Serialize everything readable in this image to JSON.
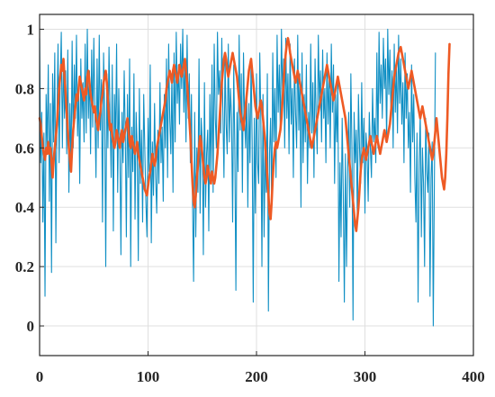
{
  "chart_data": {
    "type": "line",
    "title": "",
    "xlabel": "",
    "ylabel": "",
    "xlim": [
      0,
      400
    ],
    "ylim": [
      -0.1,
      1.05
    ],
    "grid": true,
    "legend": "none",
    "x_ticks": [
      0,
      100,
      200,
      300,
      400
    ],
    "x_tick_labels": [
      "0",
      "100",
      "200",
      "300",
      "400"
    ],
    "y_ticks": [
      0,
      0.2,
      0.4,
      0.6,
      0.8,
      1
    ],
    "y_tick_labels": [
      "0",
      "0.2",
      "0.4",
      "0.6",
      "0.8",
      "1"
    ],
    "series": [
      {
        "color": "#0f8fc4",
        "x_step": 1,
        "values": [
          0.97,
          0.55,
          0.72,
          0.35,
          0.65,
          0.1,
          0.78,
          0.6,
          0.88,
          0.42,
          0.75,
          0.18,
          0.85,
          0.62,
          0.92,
          0.28,
          0.7,
          0.95,
          0.55,
          0.82,
          0.99,
          0.6,
          0.9,
          0.7,
          0.86,
          0.58,
          0.93,
          0.45,
          0.75,
          0.52,
          0.96,
          0.6,
          0.88,
          0.7,
          0.98,
          0.64,
          0.79,
          0.48,
          0.9,
          0.7,
          0.82,
          0.62,
          0.95,
          0.65,
          1.0,
          0.7,
          0.86,
          0.58,
          0.93,
          0.67,
          0.97,
          0.72,
          0.5,
          0.9,
          0.6,
          0.98,
          0.66,
          0.83,
          0.35,
          0.92,
          0.72,
          0.2,
          0.85,
          0.6,
          0.94,
          0.7,
          0.5,
          0.88,
          0.32,
          0.78,
          0.62,
          0.95,
          0.45,
          0.8,
          0.6,
          0.24,
          0.72,
          0.55,
          0.86,
          0.65,
          0.3,
          0.78,
          0.5,
          0.9,
          0.2,
          0.67,
          0.52,
          0.85,
          0.36,
          0.72,
          0.6,
          0.22,
          0.8,
          0.48,
          0.66,
          0.35,
          0.78,
          0.6,
          0.42,
          0.3,
          0.7,
          0.52,
          0.88,
          0.28,
          0.62,
          0.44,
          0.75,
          0.5,
          0.38,
          0.66,
          0.48,
          0.82,
          0.55,
          0.67,
          0.42,
          0.78,
          0.6,
          0.9,
          0.5,
          0.95,
          0.7,
          0.58,
          0.85,
          0.45,
          0.92,
          0.62,
          0.99,
          0.75,
          0.88,
          0.68,
          0.95,
          0.8,
          1.0,
          0.72,
          0.9,
          0.62,
          0.98,
          0.7,
          0.85,
          0.55,
          0.78,
          0.42,
          0.15,
          0.72,
          0.3,
          0.6,
          0.45,
          0.9,
          0.38,
          0.7,
          0.62,
          0.24,
          0.82,
          0.4,
          0.58,
          0.66,
          0.32,
          0.78,
          0.5,
          0.88,
          0.45,
          0.95,
          0.7,
          0.6,
          0.99,
          0.78,
          0.86,
          0.65,
          0.97,
          0.72,
          0.5,
          0.9,
          0.68,
          0.58,
          0.95,
          0.62,
          0.8,
          0.7,
          0.35,
          0.88,
          0.6,
          0.12,
          0.72,
          0.52,
          0.98,
          0.66,
          0.85,
          0.45,
          0.92,
          0.7,
          0.6,
          0.8,
          0.4,
          0.75,
          0.55,
          0.9,
          0.62,
          0.08,
          0.7,
          0.38,
          0.85,
          0.55,
          0.48,
          0.92,
          0.7,
          0.2,
          0.78,
          0.3,
          0.6,
          0.45,
          0.85,
          0.05,
          0.58,
          0.7,
          0.4,
          0.92,
          0.62,
          0.8,
          0.5,
          0.98,
          0.72,
          0.88,
          0.65,
          1.0,
          0.78,
          0.9,
          0.6,
          0.97,
          0.7,
          0.85,
          0.58,
          0.95,
          0.68,
          0.8,
          0.5,
          0.9,
          0.72,
          0.6,
          0.98,
          0.66,
          0.85,
          0.4,
          0.92,
          0.55,
          0.78,
          0.62,
          0.88,
          0.48,
          0.72,
          0.6,
          0.95,
          0.65,
          0.82,
          0.5,
          0.9,
          0.7,
          0.58,
          0.98,
          0.75,
          0.86,
          0.62,
          0.93,
          0.7,
          0.8,
          0.55,
          0.92,
          0.68,
          0.85,
          0.6,
          0.95,
          0.72,
          0.88,
          0.48,
          0.78,
          0.62,
          0.82,
          0.15,
          0.55,
          0.3,
          0.7,
          0.45,
          0.08,
          0.58,
          0.2,
          0.5,
          0.72,
          0.4,
          0.85,
          0.6,
          0.02,
          0.72,
          0.55,
          0.66,
          0.35,
          0.78,
          0.6,
          0.48,
          0.82,
          0.55,
          0.7,
          0.38,
          0.65,
          0.58,
          0.42,
          0.72,
          0.6,
          0.5,
          0.8,
          0.62,
          0.7,
          0.55,
          0.92,
          0.6,
          0.99,
          0.75,
          0.88,
          0.7,
          0.97,
          0.8,
          0.9,
          0.62,
          1.0,
          0.78,
          0.93,
          0.7,
          0.86,
          0.6,
          0.95,
          0.72,
          0.88,
          0.65,
          0.98,
          0.75,
          0.9,
          0.68,
          0.82,
          0.55,
          0.92,
          0.7,
          0.85,
          0.6,
          0.72,
          0.45,
          0.88,
          0.62,
          0.78,
          0.5,
          0.35,
          0.65,
          0.08,
          0.55,
          0.72,
          0.3,
          0.6,
          0.48,
          0.2,
          0.7,
          0.52,
          0.45,
          0.65,
          0.1,
          0.5,
          0.62,
          0.0,
          0.48,
          0.92
        ]
      },
      {
        "color": "#ee5a24",
        "x_step": 1,
        "values": [
          0.7,
          0.68,
          0.64,
          0.6,
          0.58,
          0.56,
          0.6,
          0.58,
          0.62,
          0.58,
          0.6,
          0.55,
          0.5,
          0.56,
          0.6,
          0.64,
          0.68,
          0.74,
          0.8,
          0.84,
          0.88,
          0.86,
          0.9,
          0.84,
          0.78,
          0.72,
          0.66,
          0.6,
          0.56,
          0.52,
          0.6,
          0.66,
          0.7,
          0.74,
          0.78,
          0.76,
          0.8,
          0.84,
          0.82,
          0.8,
          0.78,
          0.76,
          0.8,
          0.78,
          0.84,
          0.86,
          0.82,
          0.78,
          0.76,
          0.74,
          0.72,
          0.74,
          0.7,
          0.68,
          0.66,
          0.7,
          0.72,
          0.76,
          0.78,
          0.82,
          0.84,
          0.86,
          0.82,
          0.76,
          0.7,
          0.66,
          0.68,
          0.64,
          0.62,
          0.6,
          0.62,
          0.66,
          0.64,
          0.62,
          0.6,
          0.64,
          0.66,
          0.62,
          0.64,
          0.66,
          0.68,
          0.7,
          0.66,
          0.62,
          0.6,
          0.64,
          0.62,
          0.6,
          0.58,
          0.6,
          0.62,
          0.58,
          0.56,
          0.54,
          0.52,
          0.5,
          0.48,
          0.46,
          0.45,
          0.44,
          0.47,
          0.5,
          0.52,
          0.55,
          0.58,
          0.56,
          0.54,
          0.56,
          0.6,
          0.62,
          0.64,
          0.66,
          0.68,
          0.7,
          0.72,
          0.74,
          0.76,
          0.8,
          0.82,
          0.84,
          0.86,
          0.84,
          0.82,
          0.86,
          0.88,
          0.86,
          0.84,
          0.82,
          0.85,
          0.88,
          0.86,
          0.84,
          0.86,
          0.88,
          0.9,
          0.86,
          0.82,
          0.76,
          0.7,
          0.64,
          0.56,
          0.48,
          0.42,
          0.4,
          0.44,
          0.5,
          0.54,
          0.6,
          0.64,
          0.62,
          0.58,
          0.54,
          0.5,
          0.48,
          0.5,
          0.54,
          0.52,
          0.5,
          0.48,
          0.52,
          0.5,
          0.48,
          0.5,
          0.54,
          0.58,
          0.64,
          0.7,
          0.76,
          0.82,
          0.86,
          0.9,
          0.92,
          0.9,
          0.86,
          0.84,
          0.86,
          0.88,
          0.9,
          0.92,
          0.9,
          0.88,
          0.86,
          0.84,
          0.8,
          0.76,
          0.72,
          0.7,
          0.68,
          0.66,
          0.7,
          0.74,
          0.78,
          0.82,
          0.86,
          0.88,
          0.9,
          0.86,
          0.82,
          0.78,
          0.74,
          0.72,
          0.7,
          0.72,
          0.74,
          0.76,
          0.74,
          0.7,
          0.66,
          0.62,
          0.56,
          0.5,
          0.44,
          0.38,
          0.36,
          0.42,
          0.5,
          0.56,
          0.6,
          0.62,
          0.6,
          0.62,
          0.64,
          0.66,
          0.7,
          0.76,
          0.82,
          0.88,
          0.92,
          0.95,
          0.97,
          0.95,
          0.92,
          0.9,
          0.88,
          0.86,
          0.84,
          0.82,
          0.84,
          0.86,
          0.84,
          0.82,
          0.8,
          0.78,
          0.76,
          0.74,
          0.72,
          0.7,
          0.68,
          0.66,
          0.64,
          0.62,
          0.6,
          0.62,
          0.64,
          0.66,
          0.68,
          0.7,
          0.72,
          0.74,
          0.76,
          0.78,
          0.8,
          0.82,
          0.84,
          0.86,
          0.88,
          0.86,
          0.84,
          0.82,
          0.8,
          0.78,
          0.76,
          0.78,
          0.8,
          0.82,
          0.84,
          0.82,
          0.8,
          0.78,
          0.76,
          0.74,
          0.72,
          0.7,
          0.66,
          0.62,
          0.58,
          0.54,
          0.5,
          0.46,
          0.42,
          0.38,
          0.34,
          0.32,
          0.36,
          0.4,
          0.46,
          0.52,
          0.56,
          0.58,
          0.6,
          0.58,
          0.56,
          0.58,
          0.6,
          0.62,
          0.64,
          0.62,
          0.6,
          0.58,
          0.6,
          0.62,
          0.64,
          0.62,
          0.6,
          0.58,
          0.6,
          0.62,
          0.64,
          0.66,
          0.64,
          0.62,
          0.64,
          0.66,
          0.68,
          0.72,
          0.76,
          0.8,
          0.84,
          0.86,
          0.88,
          0.9,
          0.92,
          0.93,
          0.94,
          0.92,
          0.9,
          0.88,
          0.86,
          0.84,
          0.82,
          0.8,
          0.82,
          0.84,
          0.86,
          0.84,
          0.82,
          0.8,
          0.78,
          0.76,
          0.74,
          0.72,
          0.7,
          0.72,
          0.74,
          0.72,
          0.7,
          0.68,
          0.66,
          0.64,
          0.62,
          0.6,
          0.58,
          0.56,
          0.58,
          0.62,
          0.66,
          0.7,
          0.66,
          0.62,
          0.58,
          0.54,
          0.5,
          0.48,
          0.46,
          0.5,
          0.58,
          0.7,
          0.85,
          0.95
        ]
      }
    ]
  }
}
